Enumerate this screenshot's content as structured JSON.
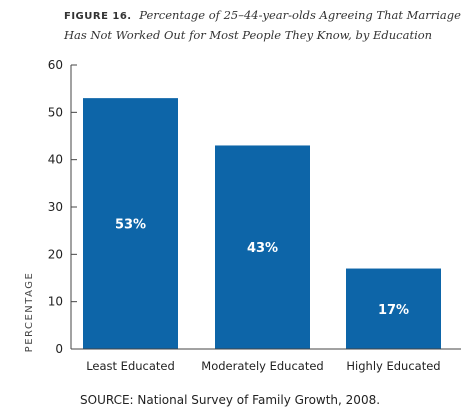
{
  "figure_label": "FIGURE 16.",
  "figure_title": "Percentage of 25–44-year-olds Agreeing That Marriage Has Not Worked Out for Most People They Know, by Education",
  "source_label": "SOURCE:",
  "source_text": "National Survey of Family Growth, 2008.",
  "colors": {
    "bar": "#0d65a8",
    "axis": "#444444",
    "text": "#222222",
    "label": "#ffffff"
  },
  "chart_data": {
    "type": "bar",
    "categories": [
      "Least Educated",
      "Moderately Educated",
      "Highly Educated"
    ],
    "values": [
      53,
      43,
      17
    ],
    "data_labels": [
      "53%",
      "43%",
      "17%"
    ],
    "ylabel": "PERCENTAGE",
    "ylim": [
      0,
      60
    ],
    "yticks": [
      0,
      10,
      20,
      30,
      40,
      50,
      60
    ],
    "grid": false,
    "legend": "none"
  }
}
